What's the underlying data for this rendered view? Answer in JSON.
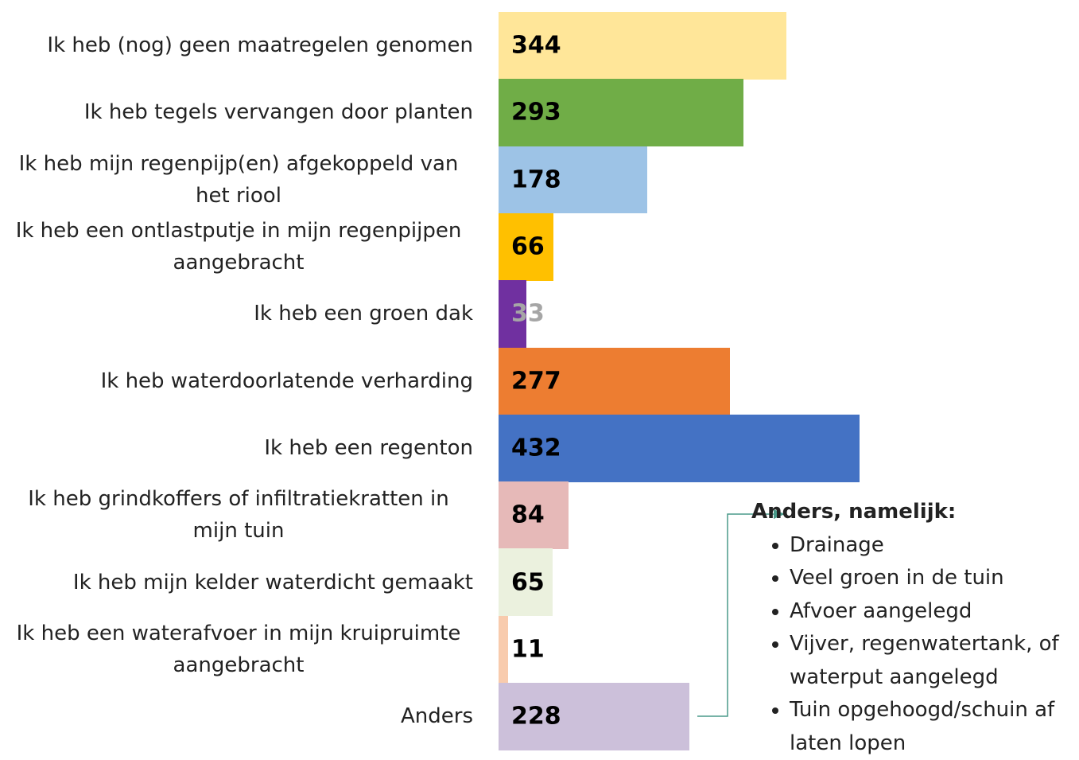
{
  "chart_data": {
    "type": "bar",
    "orientation": "horizontal",
    "categories": [
      "Ik heb (nog) geen maatregelen genomen",
      "Ik heb tegels vervangen door planten",
      "Ik heb mijn regenpijp(en) afgekoppeld van het riool",
      "Ik heb een ontlastputje in mijn regenpijpen aangebracht",
      "Ik heb een groen dak",
      "Ik heb waterdoorlatende verharding",
      "Ik heb een regenton",
      "Ik heb grindkoffers of infiltratiekratten in mijn tuin",
      "Ik heb mijn kelder waterdicht gemaakt",
      "Ik heb een waterafvoer in mijn kruipruimte aangebracht",
      "Anders"
    ],
    "values": [
      344,
      293,
      178,
      66,
      33,
      277,
      432,
      84,
      65,
      11,
      228
    ],
    "colors": [
      "#ffe699",
      "#70ad47",
      "#9dc3e6",
      "#ffc000",
      "#7030a0",
      "#ed7d31",
      "#4472c4",
      "#e6b9b8",
      "#ebf1de",
      "#f8cbad",
      "#ccc0da"
    ],
    "value_label_colors": [
      "#000000",
      "#000000",
      "#000000",
      "#000000",
      "#a6a6a6",
      "#000000",
      "#000000",
      "#000000",
      "#000000",
      "#000000",
      "#000000"
    ],
    "annotation": {
      "title": "Anders, namelijk:",
      "items": [
        "Drainage",
        "Veel groen in de tuin",
        "Afvoer aangelegd",
        "Vijver, regenwatertank, of waterput aangelegd",
        "Tuin opgehoogd/schuin af laten lopen"
      ]
    }
  }
}
